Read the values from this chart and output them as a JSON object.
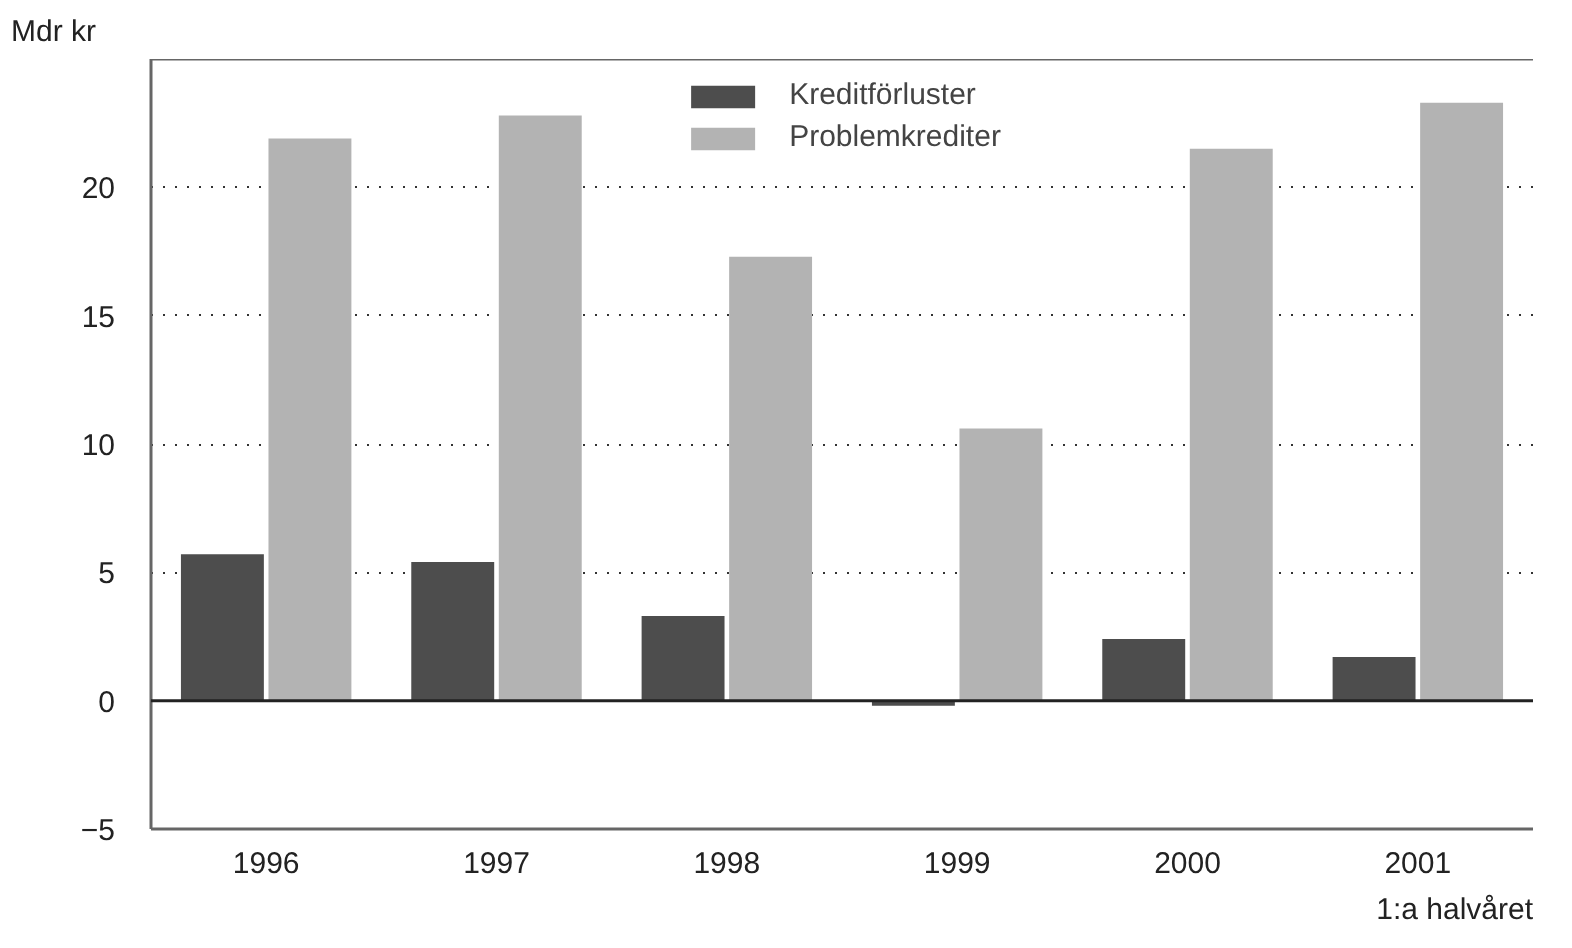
{
  "chart_data": {
    "type": "bar",
    "ylabel": "Mdr kr",
    "categories": [
      "1996",
      "1997",
      "1998",
      "1999",
      "2000",
      "2001"
    ],
    "series": [
      {
        "name": "Kreditförluster",
        "color": "#4d4d4d",
        "values": [
          5.7,
          5.4,
          3.3,
          -0.2,
          2.4,
          1.7
        ]
      },
      {
        "name": "Problemkrediter",
        "color": "#b3b3b3",
        "values": [
          21.9,
          22.8,
          17.3,
          10.6,
          21.5,
          23.3
        ]
      }
    ],
    "ylim": [
      -5,
      25
    ],
    "yticks": [
      {
        "value": -5,
        "label": "−5"
      },
      0,
      5,
      10,
      15,
      20
    ],
    "grid": "y",
    "legend": "top",
    "annotations": [
      "1:a halvåret"
    ]
  }
}
